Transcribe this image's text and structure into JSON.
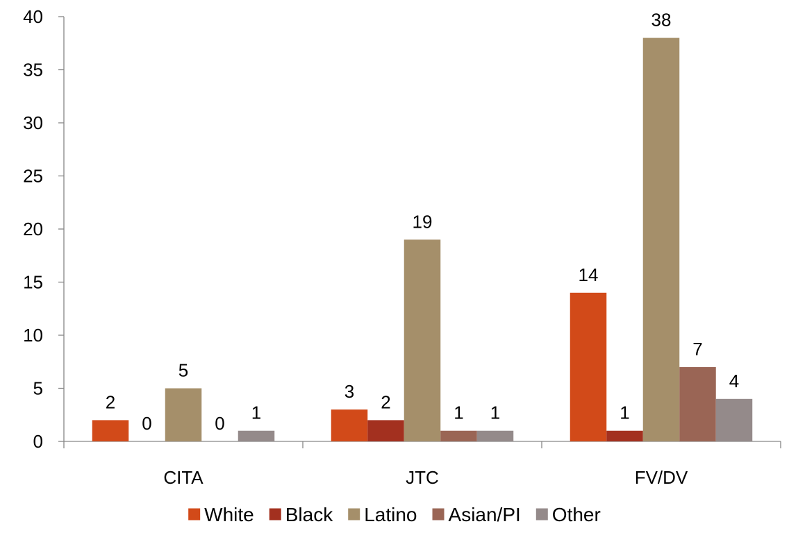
{
  "chart_data": {
    "type": "bar",
    "title": "",
    "xlabel": "",
    "ylabel": "",
    "categories": [
      "CITA",
      "JTC",
      "FV/DV"
    ],
    "series": [
      {
        "name": "White",
        "color": "#d24a19",
        "values": [
          2,
          3,
          14
        ]
      },
      {
        "name": "Black",
        "color": "#a3301f",
        "values": [
          0,
          2,
          1
        ]
      },
      {
        "name": "Latino",
        "color": "#a58f6a",
        "values": [
          5,
          19,
          38
        ]
      },
      {
        "name": "Asian/PI",
        "color": "#9a6555",
        "values": [
          0,
          1,
          7
        ]
      },
      {
        "name": "Other",
        "color": "#948a8a",
        "values": [
          1,
          1,
          4
        ]
      }
    ],
    "ylim": [
      0,
      40
    ],
    "yticks": [
      0,
      5,
      10,
      15,
      20,
      25,
      30,
      35,
      40
    ],
    "grid": false,
    "data_labels": true,
    "legend_position": "bottom"
  }
}
